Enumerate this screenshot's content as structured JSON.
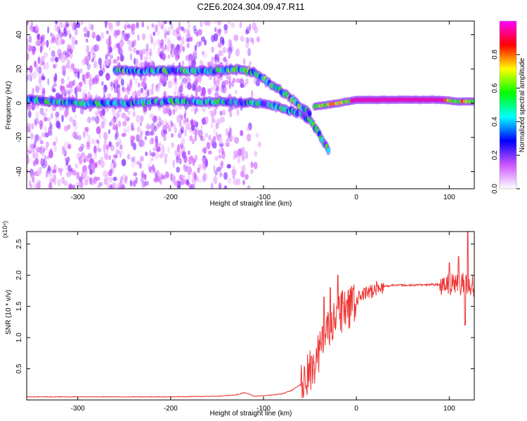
{
  "title": "C2E6.2024.304.09.47.R11",
  "chart_data": [
    {
      "type": "heatmap",
      "xlabel": "Height of straight line (km)",
      "ylabel": "Frequency (Hz)",
      "xlim": [
        -355,
        127
      ],
      "ylim": [
        -50,
        48
      ],
      "x_ticks": [
        -300,
        -200,
        -100,
        0,
        100
      ],
      "y_ticks": [
        -40,
        -20,
        0,
        20,
        40
      ],
      "colorbar": {
        "label": "Normalized spectral amplitude",
        "range": [
          0,
          1
        ],
        "ticks": [
          0.0,
          0.2,
          0.4,
          0.6,
          0.8
        ],
        "tick_labels": [
          "0.0",
          "0.2",
          "0.4",
          "0.6",
          "0.8"
        ],
        "colors": [
          "#ffffff",
          "#cc55ff",
          "#0000ff",
          "#00ffff",
          "#00ff00",
          "#ffff00",
          "#ff0000",
          "#ff00ff"
        ]
      },
      "ridges": [
        {
          "points": [
            [
              -355,
              2
            ],
            [
              -300,
              0
            ],
            [
              -250,
              0
            ],
            [
              -200,
              1
            ],
            [
              -150,
              1
            ],
            [
              -100,
              0
            ],
            [
              -80,
              -3
            ],
            [
              -60,
              -6
            ],
            [
              -50,
              -10
            ],
            [
              -40,
              -18
            ],
            [
              -30,
              -28
            ]
          ],
          "amplitude": 0.5
        },
        {
          "points": [
            [
              -260,
              19
            ],
            [
              -200,
              19
            ],
            [
              -150,
              19
            ],
            [
              -130,
              20
            ],
            [
              -110,
              18
            ],
            [
              -90,
              10
            ],
            [
              -75,
              5
            ],
            [
              -60,
              -2
            ],
            [
              -50,
              -6
            ]
          ],
          "amplitude": 0.55
        },
        {
          "points": [
            [
              -45,
              -2
            ],
            [
              -20,
              0
            ],
            [
              0,
              2
            ],
            [
              50,
              2
            ],
            [
              90,
              2
            ],
            [
              110,
              1
            ],
            [
              127,
              1
            ]
          ],
          "amplitude": 0.95
        }
      ],
      "noise_region": {
        "x_range": [
          -355,
          -100
        ],
        "y_range": [
          -50,
          48
        ],
        "amplitude": 0.2
      }
    },
    {
      "type": "line",
      "xlabel": "Height of straight line (km)",
      "ylabel": "SNR (10 * v/v)",
      "y_multiplier_label": "(x10⁴)",
      "xlim": [
        -355,
        127
      ],
      "ylim": [
        0,
        2.7
      ],
      "x_ticks": [
        -300,
        -200,
        -100,
        0,
        100
      ],
      "y_ticks": [
        0.5,
        1.0,
        1.5,
        2.0,
        2.5
      ],
      "color": "#ee3333",
      "series": [
        {
          "x": [
            -355,
            -300,
            -250,
            -200,
            -150,
            -130,
            -120,
            -110,
            -100,
            -90,
            -80,
            -70,
            -60,
            -50,
            -45,
            -40,
            -35,
            -30,
            -25,
            -20,
            -15,
            -10,
            -5,
            0,
            10,
            20,
            30,
            40,
            60,
            80,
            90,
            100,
            105,
            110,
            115,
            120,
            127
          ],
          "values": [
            0.05,
            0.05,
            0.05,
            0.05,
            0.06,
            0.08,
            0.12,
            0.06,
            0.07,
            0.08,
            0.1,
            0.15,
            0.25,
            0.45,
            0.6,
            0.8,
            1.0,
            1.1,
            1.2,
            1.3,
            1.4,
            1.45,
            1.5,
            1.6,
            1.7,
            1.78,
            1.82,
            1.84,
            1.84,
            1.85,
            1.85,
            1.85,
            1.85,
            1.85,
            1.86,
            1.85,
            1.83
          ],
          "spikes": [
            [
              -35,
              1.65
            ],
            [
              -28,
              1.8
            ],
            [
              -20,
              2.0
            ],
            [
              -15,
              1.75
            ],
            [
              -10,
              1.6
            ],
            [
              100,
              2.2
            ],
            [
              110,
              2.3
            ],
            [
              117,
              2.6
            ],
            [
              120,
              2.75
            ],
            [
              117,
              1.2
            ]
          ]
        }
      ]
    }
  ]
}
